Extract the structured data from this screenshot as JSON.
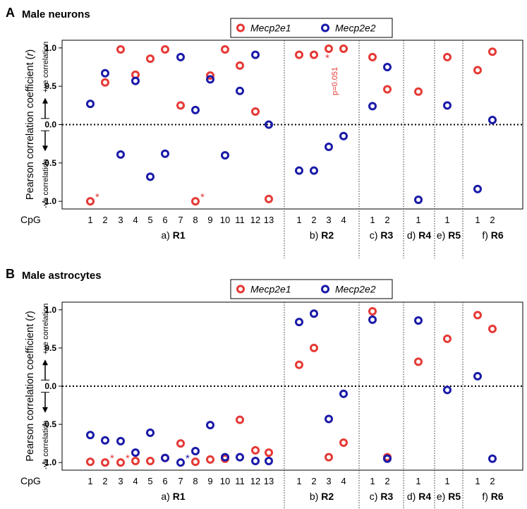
{
  "chart_data": [
    {
      "type": "scatter",
      "panel_label": "A",
      "title": "Male neurons",
      "ylabel": "Pearson correlation coefficient (r)",
      "ylabel_parts": [
        "Pearson correlation coefficient (",
        "r",
        ")"
      ],
      "pos_label": "+ve correlation",
      "neg_label": "-ve correlation",
      "ylim": [
        -1.1,
        1.1
      ],
      "yticks": [
        1.0,
        0.5,
        0.0,
        -0.5,
        -1.0
      ],
      "ytick_labels": [
        "1.0",
        "0.5",
        "0.0",
        "-0.5",
        "-1.0"
      ],
      "xaxis_label": "CpG",
      "legend": [
        {
          "name": "Mecp2e1",
          "color": "#e53935"
        },
        {
          "name": "Mecp2e2",
          "color": "#1a1aa8"
        }
      ],
      "legend_placement": "top-center",
      "reference_line": 0,
      "regions": [
        {
          "label_prefix": "a)",
          "label": "R1",
          "cpgs": [
            "1",
            "2",
            "3",
            "4",
            "5",
            "6",
            "7",
            "8",
            "9",
            "10",
            "11",
            "12",
            "13"
          ],
          "Mecp2e1": [
            -1.0,
            0.55,
            0.98,
            0.65,
            0.86,
            0.98,
            0.25,
            -1.0,
            0.64,
            0.98,
            0.77,
            0.17,
            -0.97
          ],
          "Mecp2e2": [
            0.27,
            0.67,
            -0.39,
            0.57,
            -0.68,
            -0.38,
            0.88,
            0.19,
            0.59,
            -0.4,
            0.44,
            0.91,
            0.0
          ]
        },
        {
          "label_prefix": "b)",
          "label": "R2",
          "cpgs": [
            "1",
            "2",
            "3",
            "4"
          ],
          "Mecp2e1": [
            0.91,
            0.91,
            0.99,
            0.99
          ],
          "Mecp2e2": [
            -0.6,
            -0.6,
            -0.29,
            -0.15
          ]
        },
        {
          "label_prefix": "c)",
          "label": "R3",
          "cpgs": [
            "1",
            "2"
          ],
          "Mecp2e1": [
            0.88,
            0.46
          ],
          "Mecp2e2": [
            0.24,
            0.75
          ]
        },
        {
          "label_prefix": "d)",
          "label": "R4",
          "cpgs": [
            "1"
          ],
          "Mecp2e1": [
            0.43
          ],
          "Mecp2e2": [
            -0.98
          ]
        },
        {
          "label_prefix": "e)",
          "label": "R5",
          "cpgs": [
            "1"
          ],
          "Mecp2e1": [
            0.88
          ],
          "Mecp2e2": [
            0.25
          ]
        },
        {
          "label_prefix": "f)",
          "label": "R6",
          "cpgs": [
            "1",
            "2"
          ],
          "Mecp2e1": [
            0.71,
            0.95
          ],
          "Mecp2e2": [
            -0.84,
            0.06
          ]
        }
      ],
      "annotations": [
        {
          "text": "*",
          "region": 0,
          "cpg_index": 0,
          "y": -1.0,
          "color": "#e53935",
          "side": "upper-right"
        },
        {
          "text": "*",
          "region": 0,
          "cpg_index": 7,
          "y": -1.0,
          "color": "#e53935",
          "side": "upper-right"
        },
        {
          "text": "*",
          "region": 1,
          "cpg_index": 2,
          "y": 0.99,
          "color": "#e53935",
          "side": "below"
        },
        {
          "text": "p=0.051",
          "region": 1,
          "cpg_index": 2,
          "y": 0.99,
          "color": "#e53935",
          "side": "vertical-below"
        }
      ]
    },
    {
      "type": "scatter",
      "panel_label": "B",
      "title": "Male astrocytes",
      "ylabel": "Pearson correlation coefficient (r)",
      "ylabel_parts": [
        "Pearson correlation coefficient (",
        "r",
        ")"
      ],
      "pos_label": "+ve correlation",
      "neg_label": "-ve correlation",
      "ylim": [
        -1.1,
        1.1
      ],
      "yticks": [
        1.0,
        0.5,
        0.0,
        -0.5,
        -1.0
      ],
      "ytick_labels": [
        "1.0",
        "0.5",
        "0.0",
        "-0.5",
        "-1.0"
      ],
      "xaxis_label": "CpG",
      "legend": [
        {
          "name": "Mecp2e1",
          "color": "#e53935"
        },
        {
          "name": "Mecp2e2",
          "color": "#1a1aa8"
        }
      ],
      "legend_placement": "top-center",
      "reference_line": 0,
      "regions": [
        {
          "label_prefix": "a)",
          "label": "R1",
          "cpgs": [
            "1",
            "2",
            "3",
            "4",
            "5",
            "6",
            "7",
            "8",
            "9",
            "10",
            "11",
            "12",
            "13"
          ],
          "Mecp2e1": [
            -0.99,
            -1.0,
            -1.0,
            -0.98,
            -0.98,
            -0.94,
            -0.75,
            -0.99,
            -0.96,
            -0.95,
            -0.44,
            -0.84,
            -0.87
          ],
          "Mecp2e2": [
            -0.64,
            -0.71,
            -0.72,
            -0.87,
            -0.61,
            -0.94,
            -1.0,
            -0.85,
            -0.51,
            -0.93,
            -0.93,
            -0.98,
            -0.98
          ]
        },
        {
          "label_prefix": "b)",
          "label": "R2",
          "cpgs": [
            "1",
            "2",
            "3",
            "4"
          ],
          "Mecp2e1": [
            0.28,
            0.5,
            -0.93,
            -0.74
          ],
          "Mecp2e2": [
            0.84,
            0.95,
            -0.43,
            -0.1
          ]
        },
        {
          "label_prefix": "c)",
          "label": "R3",
          "cpgs": [
            "1",
            "2"
          ],
          "Mecp2e1": [
            0.98,
            -0.93
          ],
          "Mecp2e2": [
            0.87,
            -0.95
          ]
        },
        {
          "label_prefix": "d)",
          "label": "R4",
          "cpgs": [
            "1"
          ],
          "Mecp2e1": [
            0.32
          ],
          "Mecp2e2": [
            0.86
          ]
        },
        {
          "label_prefix": "e)",
          "label": "R5",
          "cpgs": [
            "1"
          ],
          "Mecp2e1": [
            0.62
          ],
          "Mecp2e2": [
            -0.05
          ]
        },
        {
          "label_prefix": "f)",
          "label": "R6",
          "cpgs": [
            "1",
            "2"
          ],
          "Mecp2e1": [
            0.93,
            0.75
          ],
          "Mecp2e2": [
            0.13,
            -0.95
          ]
        }
      ],
      "annotations": [
        {
          "text": "*",
          "region": 0,
          "cpg_index": 1,
          "y": -1.0,
          "color": "#e53935",
          "side": "upper-right"
        },
        {
          "text": "*",
          "region": 0,
          "cpg_index": 2,
          "y": -1.0,
          "color": "#e53935",
          "side": "upper-right"
        },
        {
          "text": "*",
          "region": 0,
          "cpg_index": 6,
          "y": -1.0,
          "color": "#1a1aa8",
          "side": "upper-right"
        }
      ]
    }
  ]
}
